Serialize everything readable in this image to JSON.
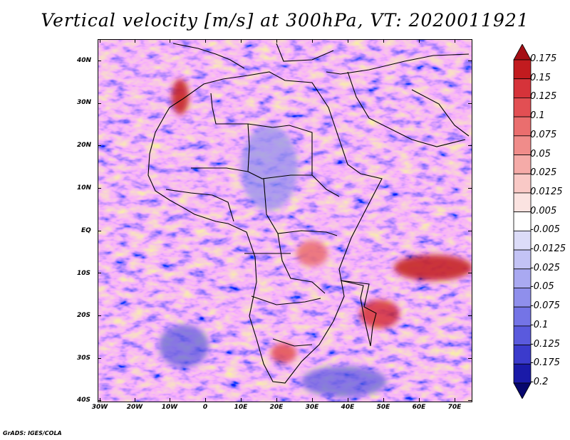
{
  "title": "Vertical velocity [m/s] at 300hPa, VT: 2020011921",
  "credit": "GrADS: IGES/COLA",
  "map": {
    "lat_labels": [
      "40N",
      "30N",
      "20N",
      "10N",
      "EQ",
      "10S",
      "20S",
      "30S",
      "40S"
    ],
    "lon_labels": [
      "30W",
      "20W",
      "10W",
      "0",
      "10E",
      "20E",
      "30E",
      "40E",
      "50E",
      "60E",
      "70E"
    ],
    "lat_range": [
      -40,
      45
    ],
    "lon_range": [
      -30,
      75
    ]
  },
  "colorbar": {
    "labels": [
      "0.175",
      "0.15",
      "0.125",
      "0.1",
      "0.075",
      "0.05",
      "0.025",
      "0.0125",
      "0.005",
      "-0.005",
      "-0.0125",
      "-0.025",
      "-0.05",
      "-0.075",
      "-0.1",
      "-0.125",
      "-0.175",
      "-0.2"
    ],
    "colors": [
      "#a50f15",
      "#c21b1f",
      "#d6333a",
      "#e24f53",
      "#ea6e6e",
      "#f08c8a",
      "#f5aba8",
      "#f9c9c6",
      "#fbe3e1",
      "#ffffff",
      "#dcdcf8",
      "#c3c3f5",
      "#a9a9f1",
      "#8f8fec",
      "#7474e6",
      "#5a5add",
      "#3b3bcc",
      "#1a1aa8",
      "#06066e"
    ]
  }
}
